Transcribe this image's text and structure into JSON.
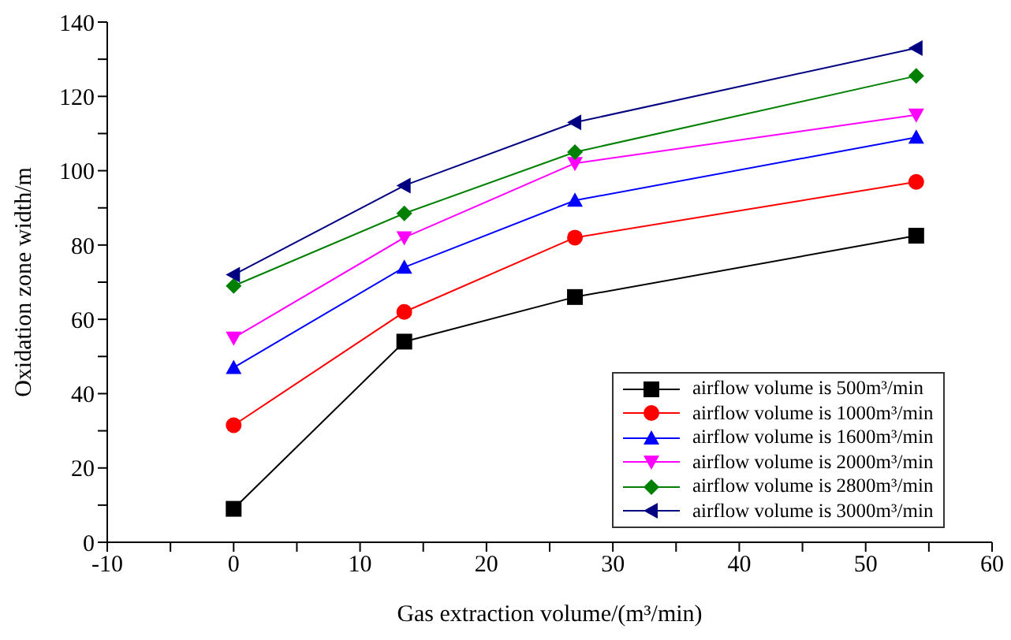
{
  "chart_data": {
    "type": "line",
    "xlabel": "Gas extraction volume/(m³/min)",
    "ylabel": "Oxidation zone width/m",
    "x": [
      0,
      13.5,
      27,
      54
    ],
    "xlim": [
      -10,
      60
    ],
    "xticks": [
      -10,
      {
        "value": -5,
        "label": null
      },
      0,
      {
        "value": 5,
        "label": null
      },
      10,
      {
        "value": 15,
        "label": null
      },
      20,
      {
        "value": 25,
        "label": null
      },
      30,
      {
        "value": 35,
        "label": null
      },
      40,
      {
        "value": 45,
        "label": null
      },
      50,
      {
        "value": 55,
        "label": null
      },
      60
    ],
    "ylim": [
      0,
      140
    ],
    "yticks": [
      0,
      {
        "value": 10,
        "label": null
      },
      20,
      {
        "value": 30,
        "label": null
      },
      40,
      {
        "value": 50,
        "label": null
      },
      60,
      {
        "value": 70,
        "label": null
      },
      80,
      {
        "value": 90,
        "label": null
      },
      100,
      {
        "value": 110,
        "label": null
      },
      120,
      {
        "value": 130,
        "label": null
      },
      140
    ],
    "legend": "bottom right",
    "line_style": "solid",
    "series": [
      {
        "name": "airflow volume is 500m³/min",
        "color": "#000000",
        "marker": "square",
        "values": [
          9,
          54,
          66,
          82.5
        ]
      },
      {
        "name": "airflow volume is 1000m³/min",
        "color": "#ff0000",
        "marker": "circle",
        "values": [
          31.5,
          62,
          82,
          97
        ]
      },
      {
        "name": "airflow volume is 1600m³/min",
        "color": "#0000ff",
        "marker": "triangle",
        "values": [
          47,
          74,
          92,
          109
        ]
      },
      {
        "name": "airflow volume is 2000m³/min",
        "color": "#ff00ff",
        "marker": "triangle-down",
        "values": [
          55,
          82,
          102,
          115
        ]
      },
      {
        "name": "airflow volume is 2800m³/min",
        "color": "#008000",
        "marker": "diamond",
        "values": [
          69,
          88.5,
          105,
          125.5
        ]
      },
      {
        "name": "airflow volume is 3000m³/min",
        "color": "#000080",
        "marker": "triangle-left",
        "values": [
          72,
          96,
          113,
          133
        ]
      }
    ]
  }
}
